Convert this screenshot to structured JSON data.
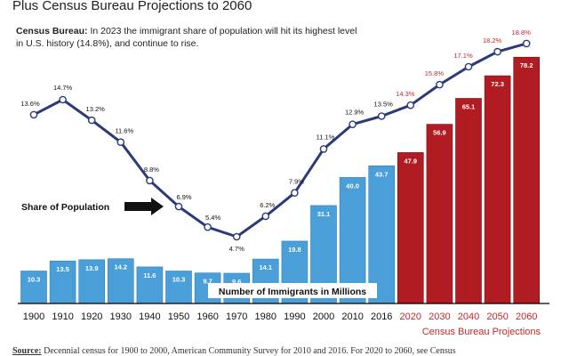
{
  "page": {
    "top_title": "Plus Census Bureau Projections to 2060",
    "subtitle_bold": "Census Bureau:",
    "subtitle_text": " In 2023 the immigrant share of population will hit its highest level in U.S. history (14.8%), and continue to rise.",
    "source_bold": "Source:",
    "source_text": " Decennial census for 1900 to 2000, American Community Survey for 2010 and 2016. For 2020 to 2060, see Census"
  },
  "chart_data": {
    "type": "bar",
    "categories": [
      "1900",
      "1910",
      "1920",
      "1930",
      "1940",
      "1950",
      "1960",
      "1970",
      "1980",
      "1990",
      "2000",
      "2010",
      "2016",
      "2020",
      "2030",
      "2040",
      "2050",
      "2060"
    ],
    "series": [
      {
        "name": "Number of Immigrants in Millions",
        "type": "bar",
        "values": [
          10.3,
          13.5,
          13.9,
          14.2,
          11.6,
          10.3,
          9.7,
          9.6,
          14.1,
          19.8,
          31.1,
          40.0,
          43.7,
          47.9,
          56.9,
          65.1,
          72.3,
          78.2
        ],
        "labels": [
          "10.3",
          "13.5",
          "13.9",
          "14.2",
          "11.6",
          "10.3",
          "9.7",
          "9.6",
          "14.1",
          "19.8",
          "31.1",
          "40.0",
          "43.7",
          "47.9",
          "56.9",
          "65.1",
          "72.3",
          "78.2"
        ]
      },
      {
        "name": "Share of Population",
        "type": "line",
        "values": [
          13.6,
          14.7,
          13.2,
          11.6,
          8.8,
          6.9,
          5.4,
          4.7,
          6.2,
          7.9,
          11.1,
          12.9,
          13.5,
          14.3,
          15.8,
          17.1,
          18.2,
          18.8
        ],
        "labels": [
          "13.6%",
          "14.7%",
          "13.2%",
          "11.6%",
          "8.8%",
          "6.9%",
          "5.4%",
          "4.7%",
          "6.2%",
          "7.9%",
          "11.1%",
          "12.9%",
          "13.5%",
          "14.3%",
          "15.8%",
          "17.1%",
          "18.2%",
          "18.8%"
        ]
      }
    ],
    "projection_start_index": 13,
    "annotations": {
      "share_label": "Share of Population",
      "bar_series_label": "Number of Immigrants in Millions",
      "projection_label": "Census Bureau Projections"
    },
    "colors": {
      "historical_bar": "#4a9fd8",
      "projected_bar": "#b01c22",
      "line": "#2b3a7a",
      "projected_label": "#c0282d",
      "axis": "#000000"
    },
    "ylim_bars": [
      0,
      80
    ],
    "ylim_line": [
      4,
      19
    ],
    "grid": false
  }
}
